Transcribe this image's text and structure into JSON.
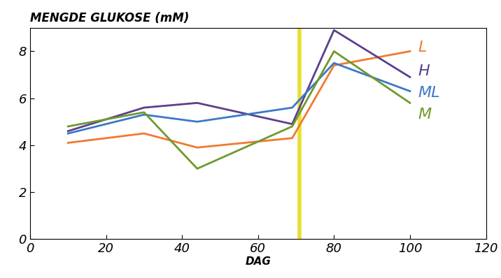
{
  "chart_data": {
    "type": "line",
    "title": "MENGDE GLUKOSE (mM)",
    "x_label": "DAG",
    "x": [
      10,
      30,
      44,
      69,
      80,
      100
    ],
    "series": [
      {
        "name": "L",
        "color": "#f07a30",
        "values": [
          4.1,
          4.5,
          3.9,
          4.3,
          7.4,
          8.0
        ]
      },
      {
        "name": "H",
        "color": "#5b3f8c",
        "values": [
          4.6,
          5.6,
          5.8,
          4.9,
          8.9,
          6.9
        ]
      },
      {
        "name": "ML",
        "color": "#3c78c8",
        "values": [
          4.5,
          5.3,
          5.0,
          5.6,
          7.5,
          6.3
        ]
      },
      {
        "name": "M",
        "color": "#6e9a2c",
        "values": [
          4.8,
          5.4,
          3.0,
          4.8,
          8.0,
          5.8
        ]
      }
    ],
    "vertical_line": {
      "x": 71,
      "color": "#e8e030"
    },
    "xlim": [
      0,
      120
    ],
    "xticks": [
      0,
      20,
      40,
      60,
      80,
      100,
      120
    ],
    "ylim": [
      0,
      9
    ],
    "yticks": [
      0,
      2,
      4,
      6,
      8
    ],
    "grid": false
  }
}
